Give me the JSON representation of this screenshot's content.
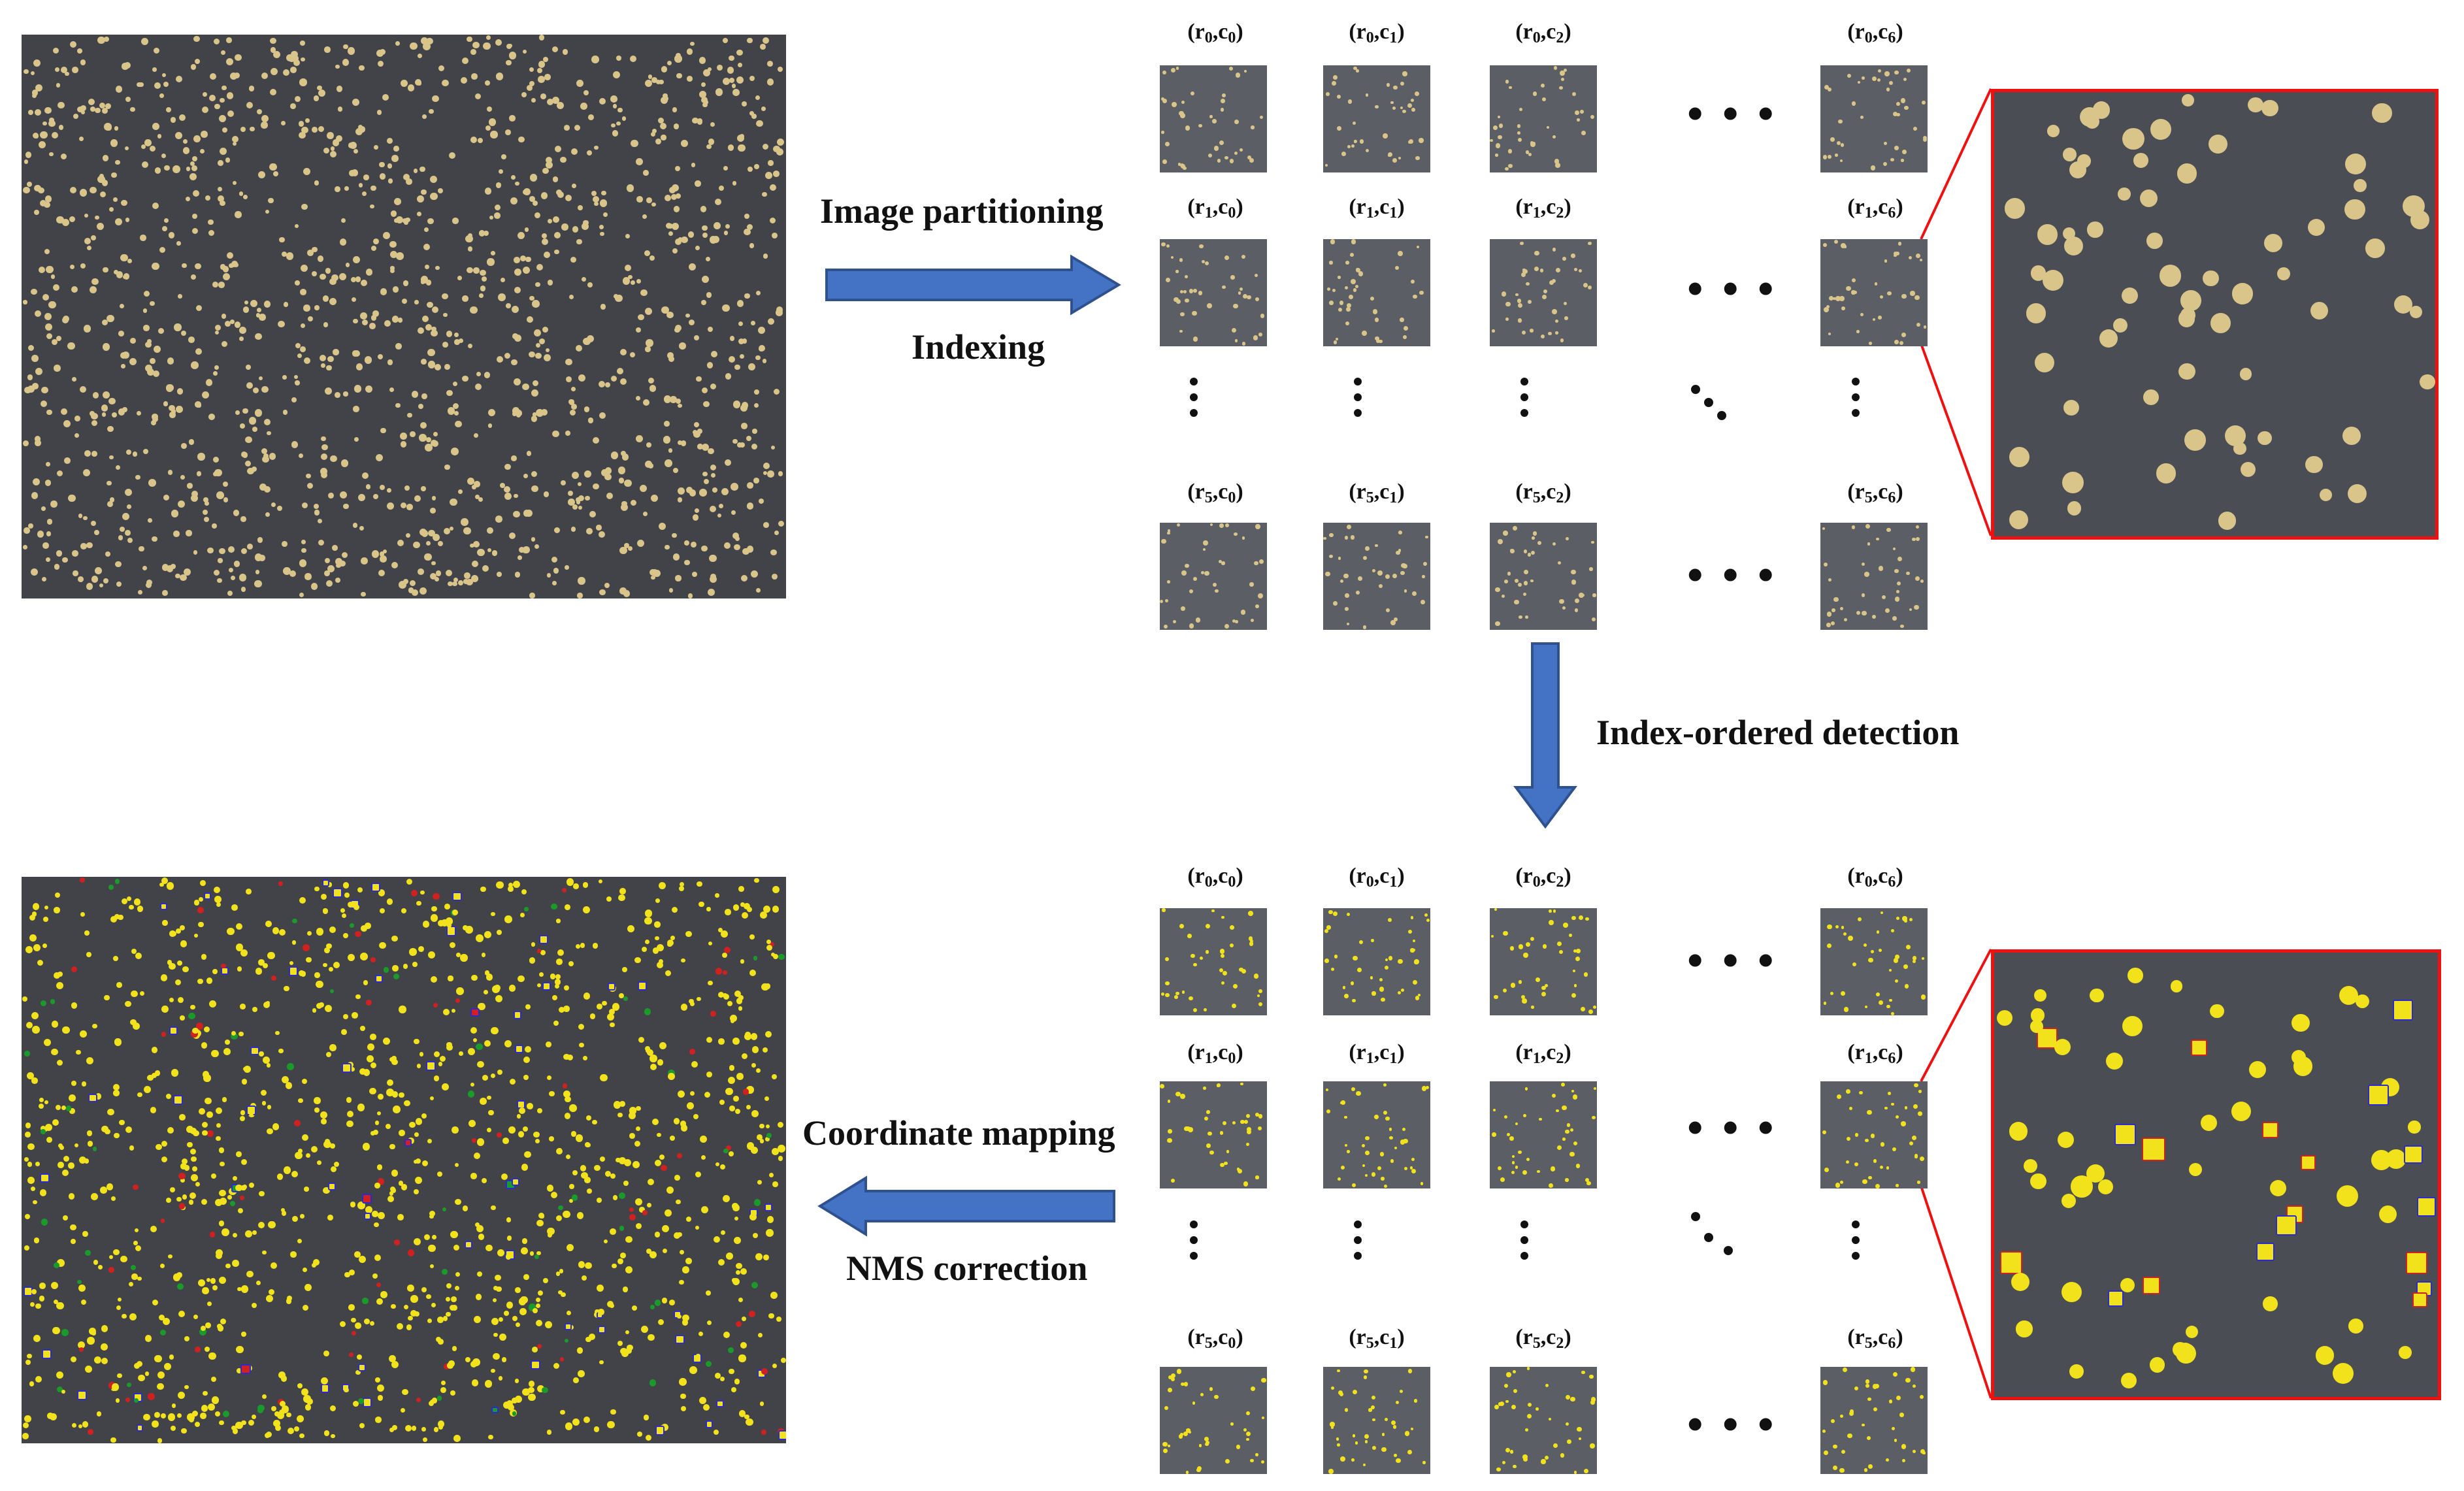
{
  "labels": {
    "partitioning": "Image partitioning",
    "indexing": "Indexing",
    "detection": "Index-ordered detection",
    "mapping": "Coordinate mapping",
    "nms": "NMS correction"
  },
  "tile_labels": {
    "r0c0": [
      "r",
      "0",
      "c",
      "0"
    ],
    "r0c1": [
      "r",
      "0",
      "c",
      "1"
    ],
    "r0c2": [
      "r",
      "0",
      "c",
      "2"
    ],
    "r0c6": [
      "r",
      "0",
      "c",
      "6"
    ],
    "r1c0": [
      "r",
      "1",
      "c",
      "0"
    ],
    "r1c1": [
      "r",
      "1",
      "c",
      "1"
    ],
    "r1c2": [
      "r",
      "1",
      "c",
      "2"
    ],
    "r1c6": [
      "r",
      "1",
      "c",
      "6"
    ],
    "r5c0": [
      "r",
      "5",
      "c",
      "0"
    ],
    "r5c1": [
      "r",
      "5",
      "c",
      "1"
    ],
    "r5c2": [
      "r",
      "5",
      "c",
      "2"
    ],
    "r5c6": [
      "r",
      "5",
      "c",
      "6"
    ]
  },
  "ellipsis": "• • •",
  "colors": {
    "arrow_fill": "#4472c4",
    "arrow_stroke": "#2f528f",
    "zoom_border": "#ee1111",
    "seed_raw": "#d9c48a",
    "seed_detected": "#f2e21c",
    "box_blue": "#2a2ad0",
    "box_red": "#d02020",
    "box_green": "#1a9a2a"
  }
}
